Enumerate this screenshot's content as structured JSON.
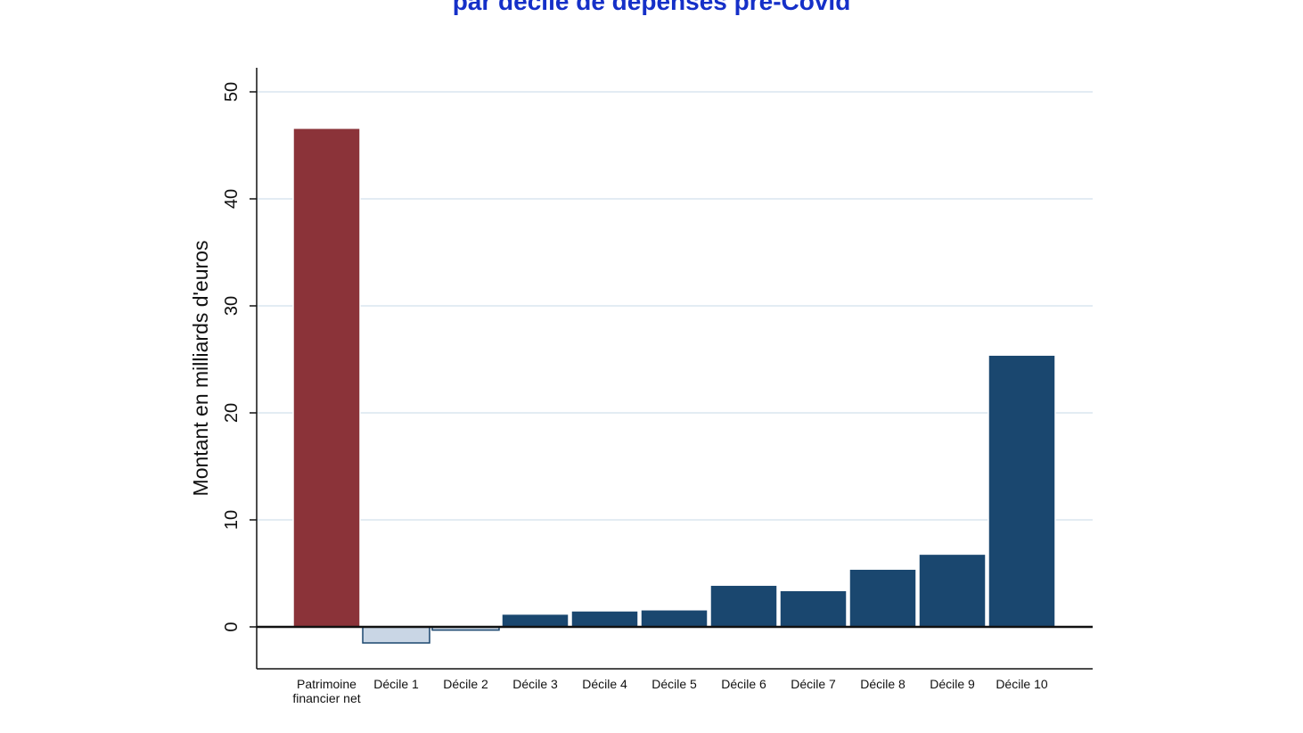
{
  "header": {
    "title": "par décile de dépenses pré-Covid"
  },
  "chart_data": {
    "type": "bar",
    "title": "par décile de dépenses pré-Covid",
    "xlabel": "",
    "ylabel": "Montant en milliards d'euros",
    "ylim": [
      -3.8,
      52.5
    ],
    "yticks": [
      0,
      10,
      20,
      30,
      40,
      50
    ],
    "grid": true,
    "legend": "none",
    "categories": [
      [
        "Patrimoine",
        "financier net"
      ],
      [
        "Décile 1"
      ],
      [
        "Décile 2"
      ],
      [
        "Décile 3"
      ],
      [
        "Décile 4"
      ],
      [
        "Décile 5"
      ],
      [
        "Décile 6"
      ],
      [
        "Décile 7"
      ],
      [
        "Décile 8"
      ],
      [
        "Décile 9"
      ],
      [
        "Décile 10"
      ]
    ],
    "values": [
      46.6,
      -1.5,
      -0.3,
      1.2,
      1.5,
      1.6,
      3.9,
      3.4,
      5.4,
      6.8,
      25.4
    ],
    "colors": {
      "patrimoine": "#8b3339",
      "negative_fill": "#c9d6e5",
      "negative_stroke": "#1a476f",
      "positive": "#1a476f",
      "grid": "#e3ecf3",
      "title": "#1530c8"
    }
  }
}
